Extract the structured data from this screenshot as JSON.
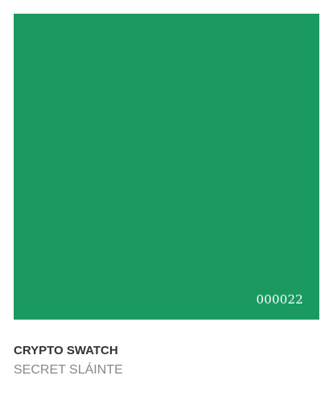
{
  "swatch": {
    "color": "#1a9a61",
    "code": "000022"
  },
  "product": {
    "title": "CRYPTO SWATCH",
    "subtitle": "SECRET SLÁINTE"
  }
}
